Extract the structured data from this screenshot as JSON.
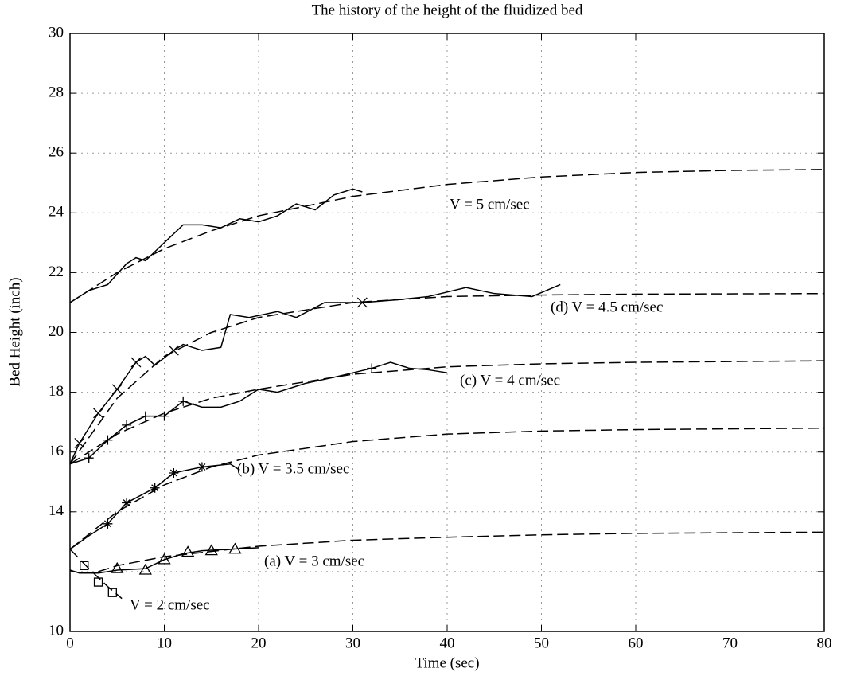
{
  "chart_data": {
    "type": "line",
    "title": "The history of the height of the fluidized bed",
    "x_label": "Time (sec)",
    "y_label": "Bed Height (inch)",
    "xlim": [
      0,
      80
    ],
    "ylim": [
      10,
      30
    ],
    "xticks": [
      0,
      10,
      20,
      30,
      40,
      50,
      60,
      70,
      80
    ],
    "yticks": [
      10,
      {
        "value": 12,
        "label": null
      },
      14,
      16,
      18,
      20,
      22,
      24,
      26,
      28,
      30
    ],
    "grid": true,
    "annotations": [
      "V = 5 cm/sec",
      "(d) V = 4.5 cm/sec",
      "(c) V = 4 cm/sec",
      "(b) V = 3.5 cm/sec",
      "(a) V = 3 cm/sec",
      "V = 2 cm/sec"
    ],
    "series": [
      {
        "color": "#000000",
        "line": "dashed",
        "x": [
          0,
          5,
          10,
          15,
          20,
          30,
          40,
          50,
          60,
          70,
          80
        ],
        "values": [
          21,
          22.0,
          22.8,
          23.4,
          23.9,
          24.55,
          24.95,
          25.2,
          25.35,
          25.42,
          25.45
        ]
      },
      {
        "color": "#000000",
        "line": "dashed",
        "x": [
          0,
          5,
          10,
          15,
          20,
          30,
          40,
          50,
          60,
          80
        ],
        "values": [
          15.6,
          17.8,
          19.2,
          20.0,
          20.5,
          21.0,
          21.2,
          21.25,
          21.28,
          21.3
        ]
      },
      {
        "color": "#000000",
        "line": "dashed",
        "x": [
          0,
          5,
          10,
          15,
          20,
          30,
          40,
          50,
          60,
          80
        ],
        "values": [
          15.6,
          16.6,
          17.3,
          17.8,
          18.1,
          18.6,
          18.85,
          18.95,
          19.0,
          19.05
        ]
      },
      {
        "color": "#000000",
        "line": "dashed",
        "x": [
          0,
          5,
          10,
          15,
          20,
          30,
          40,
          50,
          60,
          80
        ],
        "values": [
          12.75,
          14.0,
          14.9,
          15.5,
          15.9,
          16.35,
          16.6,
          16.7,
          16.75,
          16.8
        ]
      },
      {
        "color": "#000000",
        "line": "dashed",
        "x": [
          3,
          5,
          10,
          20,
          30,
          40,
          50,
          60,
          80
        ],
        "values": [
          12.0,
          12.2,
          12.5,
          12.85,
          13.05,
          13.15,
          13.23,
          13.28,
          13.32
        ]
      },
      {
        "color": "#000000",
        "line": "dashed",
        "x": [
          0,
          2,
          4,
          5.5
        ],
        "values": [
          12.75,
          12.1,
          11.5,
          11.1
        ]
      },
      {
        "color": "#000000",
        "line": "solid",
        "x": [
          0,
          2,
          4,
          6,
          7,
          8,
          10,
          12,
          14,
          16,
          18,
          20,
          22,
          24,
          26,
          28,
          30,
          31
        ],
        "values": [
          21,
          21.4,
          21.6,
          22.3,
          22.5,
          22.4,
          23.0,
          23.6,
          23.6,
          23.5,
          23.8,
          23.7,
          23.9,
          24.3,
          24.1,
          24.6,
          24.8,
          24.7
        ]
      },
      {
        "color": "#000000",
        "line": "solid",
        "x": [
          0,
          1,
          3,
          5,
          7,
          8,
          9,
          11,
          12,
          14,
          16,
          17,
          19,
          22,
          24,
          27,
          31,
          35,
          38,
          42,
          45,
          49,
          52
        ],
        "values": [
          15.6,
          16.3,
          17.3,
          18.1,
          19.0,
          19.2,
          18.9,
          19.4,
          19.6,
          19.4,
          19.5,
          20.6,
          20.5,
          20.7,
          20.5,
          21.0,
          21.0,
          21.1,
          21.2,
          21.5,
          21.3,
          21.2,
          21.6
        ]
      },
      {
        "color": "#000000",
        "line": "solid",
        "x": [
          0,
          2,
          4,
          6,
          8,
          10,
          12,
          14,
          16,
          18,
          20,
          22,
          25,
          28,
          32,
          34,
          36,
          38,
          40
        ],
        "values": [
          15.6,
          15.8,
          16.4,
          16.9,
          17.2,
          17.2,
          17.7,
          17.5,
          17.5,
          17.7,
          18.1,
          18.0,
          18.3,
          18.5,
          18.8,
          19.0,
          18.8,
          18.75,
          18.65
        ]
      },
      {
        "color": "#000000",
        "line": "solid",
        "x": [
          0,
          2,
          4,
          6,
          9,
          11,
          14,
          17,
          18
        ],
        "values": [
          12.75,
          13.2,
          13.6,
          14.3,
          14.8,
          15.3,
          15.5,
          15.6,
          15.4
        ]
      },
      {
        "color": "#000000",
        "line": "solid",
        "x": [
          0,
          1,
          3,
          5,
          8,
          10,
          12,
          14,
          17,
          20
        ],
        "values": [
          12.05,
          11.95,
          11.95,
          12.05,
          12.1,
          12.4,
          12.6,
          12.7,
          12.75,
          12.8
        ]
      },
      {
        "color": "#000000",
        "line": "none",
        "marker": "x",
        "x": [
          1,
          3,
          5,
          7,
          11,
          31
        ],
        "values": [
          16.3,
          17.3,
          18.1,
          19.0,
          19.4,
          21.0
        ]
      },
      {
        "color": "#000000",
        "line": "none",
        "marker": "plus",
        "x": [
          2,
          4,
          6,
          8,
          10,
          12,
          32
        ],
        "values": [
          15.8,
          16.4,
          16.9,
          17.2,
          17.2,
          17.7,
          18.8
        ]
      },
      {
        "color": "#000000",
        "line": "none",
        "marker": "star",
        "x": [
          4,
          6,
          9,
          11,
          14
        ],
        "values": [
          13.6,
          14.3,
          14.8,
          15.3,
          15.5
        ]
      },
      {
        "color": "#000000",
        "line": "none",
        "marker": "triangle",
        "x": [
          5,
          8,
          10,
          12.5,
          15,
          17.5
        ],
        "values": [
          12.1,
          12.05,
          12.4,
          12.65,
          12.7,
          12.75
        ]
      },
      {
        "color": "#000000",
        "line": "none",
        "marker": "square",
        "x": [
          1.5,
          3,
          4.5
        ],
        "values": [
          12.2,
          11.65,
          11.3
        ]
      }
    ]
  }
}
